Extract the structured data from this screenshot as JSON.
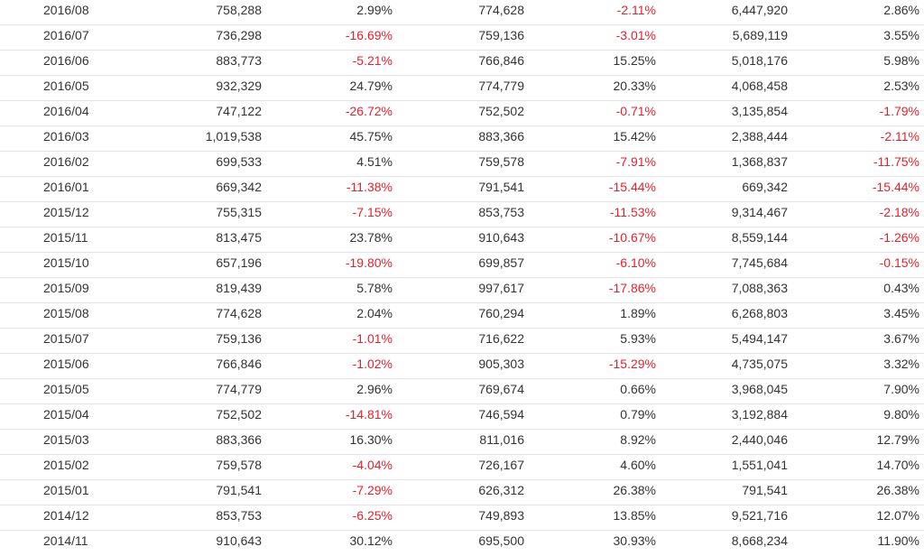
{
  "colors": {
    "text": "#333333",
    "negative": "#e8202d",
    "divider": "#e6e6e6"
  },
  "rows": [
    [
      "2016/08",
      "758,288",
      "2.99%",
      "774,628",
      "-2.11%",
      "6,447,920",
      "2.86%"
    ],
    [
      "2016/07",
      "736,298",
      "-16.69%",
      "759,136",
      "-3.01%",
      "5,689,119",
      "3.55%"
    ],
    [
      "2016/06",
      "883,773",
      "-5.21%",
      "766,846",
      "15.25%",
      "5,018,176",
      "5.98%"
    ],
    [
      "2016/05",
      "932,329",
      "24.79%",
      "774,779",
      "20.33%",
      "4,068,458",
      "2.53%"
    ],
    [
      "2016/04",
      "747,122",
      "-26.72%",
      "752,502",
      "-0.71%",
      "3,135,854",
      "-1.79%"
    ],
    [
      "2016/03",
      "1,019,538",
      "45.75%",
      "883,366",
      "15.42%",
      "2,388,444",
      "-2.11%"
    ],
    [
      "2016/02",
      "699,533",
      "4.51%",
      "759,578",
      "-7.91%",
      "1,368,837",
      "-11.75%"
    ],
    [
      "2016/01",
      "669,342",
      "-11.38%",
      "791,541",
      "-15.44%",
      "669,342",
      "-15.44%"
    ],
    [
      "2015/12",
      "755,315",
      "-7.15%",
      "853,753",
      "-11.53%",
      "9,314,467",
      "-2.18%"
    ],
    [
      "2015/11",
      "813,475",
      "23.78%",
      "910,643",
      "-10.67%",
      "8,559,144",
      "-1.26%"
    ],
    [
      "2015/10",
      "657,196",
      "-19.80%",
      "699,857",
      "-6.10%",
      "7,745,684",
      "-0.15%"
    ],
    [
      "2015/09",
      "819,439",
      "5.78%",
      "997,617",
      "-17.86%",
      "7,088,363",
      "0.43%"
    ],
    [
      "2015/08",
      "774,628",
      "2.04%",
      "760,294",
      "1.89%",
      "6,268,803",
      "3.45%"
    ],
    [
      "2015/07",
      "759,136",
      "-1.01%",
      "716,622",
      "5.93%",
      "5,494,147",
      "3.67%"
    ],
    [
      "2015/06",
      "766,846",
      "-1.02%",
      "905,303",
      "-15.29%",
      "4,735,075",
      "3.32%"
    ],
    [
      "2015/05",
      "774,779",
      "2.96%",
      "769,674",
      "0.66%",
      "3,968,045",
      "7.90%"
    ],
    [
      "2015/04",
      "752,502",
      "-14.81%",
      "746,594",
      "0.79%",
      "3,192,884",
      "9.80%"
    ],
    [
      "2015/03",
      "883,366",
      "16.30%",
      "811,016",
      "8.92%",
      "2,440,046",
      "12.79%"
    ],
    [
      "2015/02",
      "759,578",
      "-4.04%",
      "726,167",
      "4.60%",
      "1,551,041",
      "14.70%"
    ],
    [
      "2015/01",
      "791,541",
      "-7.29%",
      "626,312",
      "26.38%",
      "791,541",
      "26.38%"
    ],
    [
      "2014/12",
      "853,753",
      "-6.25%",
      "749,893",
      "13.85%",
      "9,521,716",
      "12.07%"
    ],
    [
      "2014/11",
      "910,643",
      "30.12%",
      "695,500",
      "30.93%",
      "8,668,234",
      "11.90%"
    ]
  ]
}
